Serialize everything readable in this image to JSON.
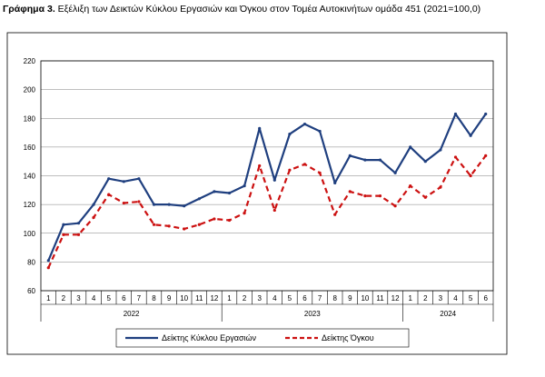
{
  "figure": {
    "label": "Γράφημα 3.",
    "caption": "Εξέλιξη των Δεικτών Κύκλου Εργασιών και Όγκου στον Τομέα Αυτοκινήτων ομάδα 451 (2021=100,0)"
  },
  "colors": {
    "turnover": "#1f3f7f",
    "volume": "#cc1111",
    "grid": "#7f7f7f",
    "frame": "#000000"
  },
  "chart_data": {
    "type": "line",
    "title": "",
    "xlabel": "",
    "ylabel": "",
    "ylim": [
      60,
      220
    ],
    "yticks": [
      60,
      80,
      100,
      120,
      140,
      160,
      180,
      200,
      220
    ],
    "grid": true,
    "legend_position": "bottom",
    "categories": [
      "1",
      "2",
      "3",
      "4",
      "5",
      "6",
      "7",
      "8",
      "9",
      "10",
      "11",
      "12",
      "1",
      "2",
      "3",
      "4",
      "5",
      "6",
      "7",
      "8",
      "9",
      "10",
      "11",
      "12",
      "1",
      "2",
      "3",
      "4",
      "5",
      "6"
    ],
    "year_groups": [
      {
        "label": "2022",
        "count": 12
      },
      {
        "label": "2023",
        "count": 12
      },
      {
        "label": "2024",
        "count": 6
      }
    ],
    "series": [
      {
        "name": "Δείκτης Κύκλου Εργασιών",
        "style": "solid",
        "values": [
          81,
          106,
          107,
          120,
          138,
          136,
          138,
          120,
          120,
          119,
          124,
          129,
          128,
          133,
          173,
          137,
          169,
          176,
          171,
          135,
          154,
          151,
          151,
          142,
          160,
          150,
          158,
          183,
          168,
          183
        ]
      },
      {
        "name": "Δείκτης Όγκου",
        "style": "dashed",
        "values": [
          76,
          99,
          99,
          111,
          127,
          121,
          122,
          106,
          105,
          103,
          106,
          110,
          109,
          114,
          147,
          116,
          144,
          148,
          142,
          113,
          129,
          126,
          126,
          119,
          133,
          125,
          132,
          153,
          140,
          154
        ]
      }
    ]
  }
}
